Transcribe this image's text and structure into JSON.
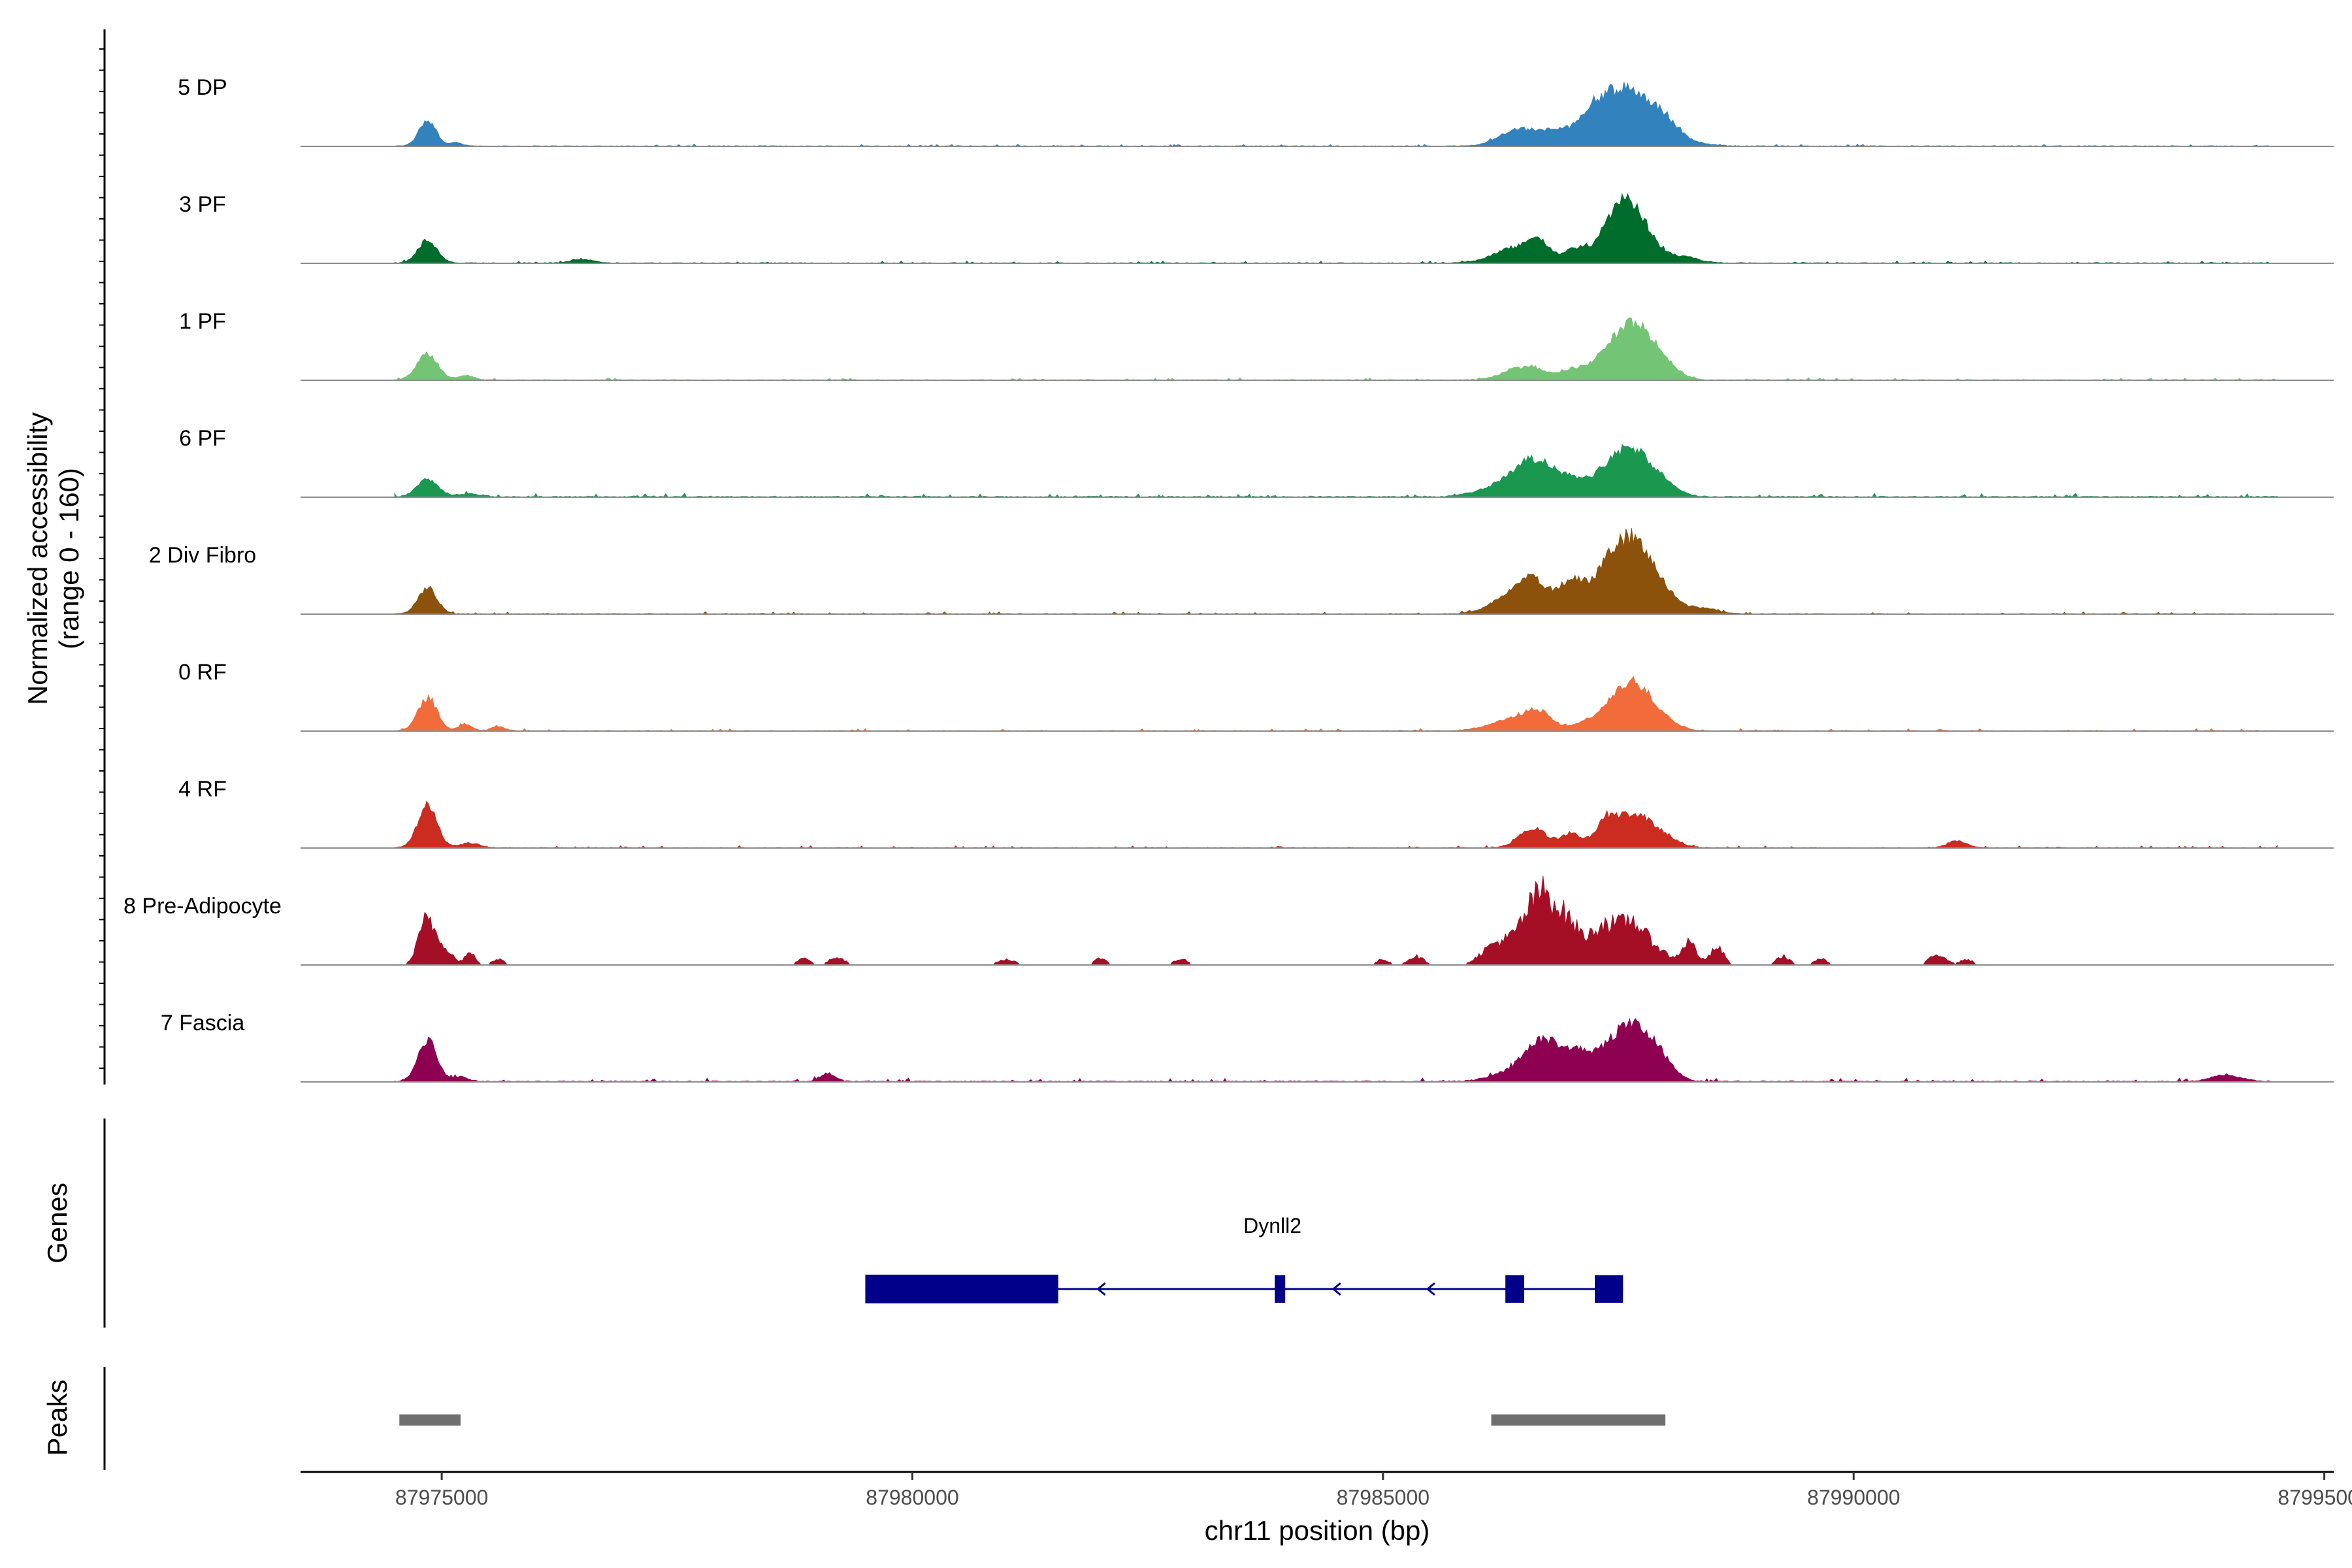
{
  "chart_data": {
    "type": "area",
    "chrom": "chr11",
    "xlim": [
      87973500,
      87995100
    ],
    "ylim": [
      0,
      160
    ],
    "ylabel_line1": "Normalized accessibility",
    "ylabel_line2": "(range 0 - 160)",
    "xlabel": "chr11 position (bp)",
    "x_ticks": [
      87975000,
      87980000,
      87985000,
      87990000,
      87995000
    ],
    "x_tick_labels": [
      "87975000",
      "87980000",
      "87985000",
      "87990000",
      "87995000"
    ],
    "region": [
      87974500,
      87994500
    ],
    "tracks": [
      {
        "name": "5 DP",
        "color": "#3182bd",
        "density": "low",
        "peaks": [
          [
            87974850,
            45,
            90
          ],
          [
            87975150,
            6,
            60
          ],
          [
            87986450,
            30,
            200
          ],
          [
            87986800,
            16,
            120
          ],
          [
            87987200,
            25,
            180
          ],
          [
            87987600,
            98,
            330
          ],
          [
            87988000,
            10,
            120
          ]
        ]
      },
      {
        "name": "3 PF",
        "color": "#006d2c",
        "density": "med",
        "peaks": [
          [
            87974850,
            40,
            100
          ],
          [
            87976500,
            6,
            120
          ],
          [
            87986400,
            25,
            220
          ],
          [
            87986650,
            30,
            120
          ],
          [
            87987050,
            24,
            120
          ],
          [
            87987450,
            45,
            160
          ],
          [
            87987650,
            82,
            200
          ],
          [
            87988200,
            10,
            150
          ]
        ]
      },
      {
        "name": "1 PF",
        "color": "#74c476",
        "density": "med",
        "peaks": [
          [
            87974850,
            46,
            110
          ],
          [
            87975250,
            8,
            80
          ],
          [
            87986350,
            12,
            150
          ],
          [
            87986600,
            20,
            150
          ],
          [
            87987000,
            16,
            120
          ],
          [
            87987300,
            18,
            150
          ],
          [
            87987650,
            98,
            220
          ],
          [
            87988000,
            14,
            150
          ]
        ]
      },
      {
        "name": "6 PF",
        "color": "#1a9850",
        "density": "high",
        "peaks": [
          [
            87974850,
            30,
            110
          ],
          [
            87975300,
            5,
            120
          ],
          [
            87986150,
            12,
            200
          ],
          [
            87986600,
            65,
            220
          ],
          [
            87987000,
            18,
            150
          ],
          [
            87987350,
            22,
            200
          ],
          [
            87987650,
            76,
            220
          ],
          [
            87988000,
            12,
            150
          ]
        ]
      },
      {
        "name": "2 Div Fibro",
        "color": "#8c510a",
        "density": "med",
        "peaks": [
          [
            87974850,
            45,
            100
          ],
          [
            87986400,
            35,
            220
          ],
          [
            87986600,
            40,
            150
          ],
          [
            87987000,
            55,
            140
          ],
          [
            87987350,
            42,
            160
          ],
          [
            87987650,
            125,
            210
          ],
          [
            87988000,
            22,
            150
          ],
          [
            87988400,
            10,
            150
          ]
        ]
      },
      {
        "name": "0 RF",
        "color": "#f26b3a",
        "density": "med",
        "peaks": [
          [
            87974850,
            58,
            100
          ],
          [
            87975250,
            12,
            70
          ],
          [
            87975600,
            8,
            70
          ],
          [
            87986400,
            20,
            250
          ],
          [
            87986650,
            25,
            140
          ],
          [
            87987250,
            18,
            180
          ],
          [
            87987650,
            84,
            200
          ],
          [
            87988000,
            12,
            150
          ]
        ]
      },
      {
        "name": "4 RF",
        "color": "#cb2c1f",
        "density": "med",
        "peaks": [
          [
            87974850,
            75,
            100
          ],
          [
            87975300,
            8,
            100
          ],
          [
            87986600,
            33,
            150
          ],
          [
            87987000,
            25,
            100
          ],
          [
            87987350,
            30,
            100
          ],
          [
            87987650,
            58,
            220
          ],
          [
            87988000,
            10,
            150
          ],
          [
            87991100,
            12,
            100
          ]
        ]
      },
      {
        "name": "8 Pre-Adipocyte",
        "color": "#a50f26",
        "density": "sparse",
        "peaks": [
          [
            87974850,
            80,
            90
          ],
          [
            87975050,
            25,
            70
          ],
          [
            87975300,
            20,
            60
          ],
          [
            87975600,
            10,
            60
          ],
          [
            87978850,
            14,
            60
          ],
          [
            87979200,
            12,
            90
          ],
          [
            87981000,
            10,
            90
          ],
          [
            87982000,
            12,
            60
          ],
          [
            87982850,
            10,
            80
          ],
          [
            87985000,
            10,
            60
          ],
          [
            87985350,
            15,
            80
          ],
          [
            87986200,
            35,
            150
          ],
          [
            87986550,
            65,
            150
          ],
          [
            87986750,
            92,
            140
          ],
          [
            87987000,
            55,
            120
          ],
          [
            87987350,
            70,
            140
          ],
          [
            87987650,
            68,
            120
          ],
          [
            87987900,
            28,
            120
          ],
          [
            87988250,
            40,
            80
          ],
          [
            87988550,
            30,
            70
          ],
          [
            87989250,
            15,
            70
          ],
          [
            87989650,
            10,
            70
          ],
          [
            87990900,
            18,
            90
          ],
          [
            87991200,
            10,
            60
          ]
        ]
      },
      {
        "name": "7 Fascia",
        "color": "#8e0152",
        "density": "high",
        "peaks": [
          [
            87974850,
            70,
            100
          ],
          [
            87975200,
            8,
            80
          ],
          [
            87979100,
            14,
            80
          ],
          [
            87986350,
            15,
            200
          ],
          [
            87986700,
            68,
            180
          ],
          [
            87987050,
            42,
            150
          ],
          [
            87987350,
            28,
            150
          ],
          [
            87987650,
            95,
            200
          ],
          [
            87987950,
            25,
            150
          ],
          [
            87993950,
            12,
            150
          ]
        ]
      }
    ],
    "genes_label": "Genes",
    "gene": {
      "name": "Dynll2",
      "strand": "-",
      "start": 87979500,
      "end": 87987550,
      "exons": [
        [
          87979500,
          87981550
        ],
        [
          87983850,
          87983950
        ],
        [
          87986300,
          87986500
        ],
        [
          87987250,
          87987550
        ]
      ]
    },
    "peaks_label": "Peaks",
    "peak_regions": [
      [
        87974550,
        87975200
      ],
      [
        87986150,
        87988000
      ]
    ]
  }
}
